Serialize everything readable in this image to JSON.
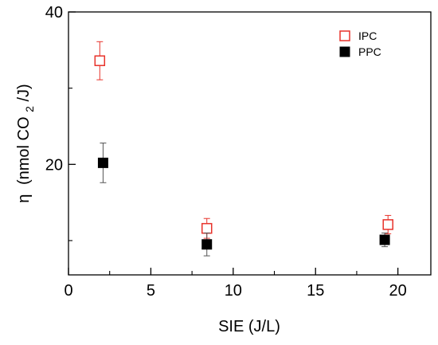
{
  "chart_data": {
    "type": "scatter",
    "xlabel": "SIE (J/L)",
    "ylabel_parts": {
      "symbol": "η",
      "prefix": "(nmol CO",
      "subscript": "2",
      "suffix": "/J)"
    },
    "xlim": [
      0,
      22
    ],
    "ylim": [
      5.5,
      40
    ],
    "x_major_ticks": [
      0,
      5,
      10,
      15,
      20
    ],
    "x_minor_ticks": [
      2.5,
      7.5,
      12.5,
      17.5
    ],
    "y_major_ticks": [
      20,
      40
    ],
    "y_minor_ticks": [
      10,
      30
    ],
    "grid": false,
    "legend_position": "top-right",
    "series": [
      {
        "name": "IPC",
        "marker": "open-square",
        "color": "#e8322a",
        "points": [
          {
            "x": 1.9,
            "y": 33.6,
            "err": 2.5
          },
          {
            "x": 8.4,
            "y": 11.6,
            "err": 1.3
          },
          {
            "x": 19.4,
            "y": 12.1,
            "err": 1.2
          }
        ]
      },
      {
        "name": "PPC",
        "marker": "filled-square",
        "color": "#000000",
        "points": [
          {
            "x": 2.1,
            "y": 20.2,
            "err": 2.6
          },
          {
            "x": 8.4,
            "y": 9.5,
            "err": 1.5
          },
          {
            "x": 19.2,
            "y": 10.1,
            "err": 0.9
          }
        ]
      }
    ]
  }
}
